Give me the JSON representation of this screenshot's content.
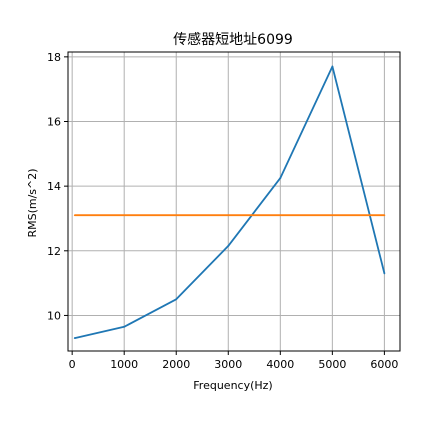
{
  "chart_data": {
    "type": "line",
    "title": "传感器短地址6099",
    "xlabel": "Frequency(Hz)",
    "ylabel": "RMS(m/s^2)",
    "xlim": [
      -80,
      6300
    ],
    "ylim": [
      8.9,
      18.15
    ],
    "xticks": [
      0,
      1000,
      2000,
      3000,
      4000,
      5000,
      6000
    ],
    "yticks": [
      10,
      12,
      14,
      16,
      18
    ],
    "grid": true,
    "series": [
      {
        "color": "#1f77b4",
        "x": [
          50,
          1000,
          2000,
          3000,
          4000,
          5000,
          6000
        ],
        "y": [
          9.3,
          9.65,
          10.5,
          12.15,
          14.25,
          17.7,
          11.3
        ]
      },
      {
        "color": "#ff7f0e",
        "x": [
          50,
          6000
        ],
        "y": [
          13.1,
          13.1
        ]
      }
    ]
  }
}
